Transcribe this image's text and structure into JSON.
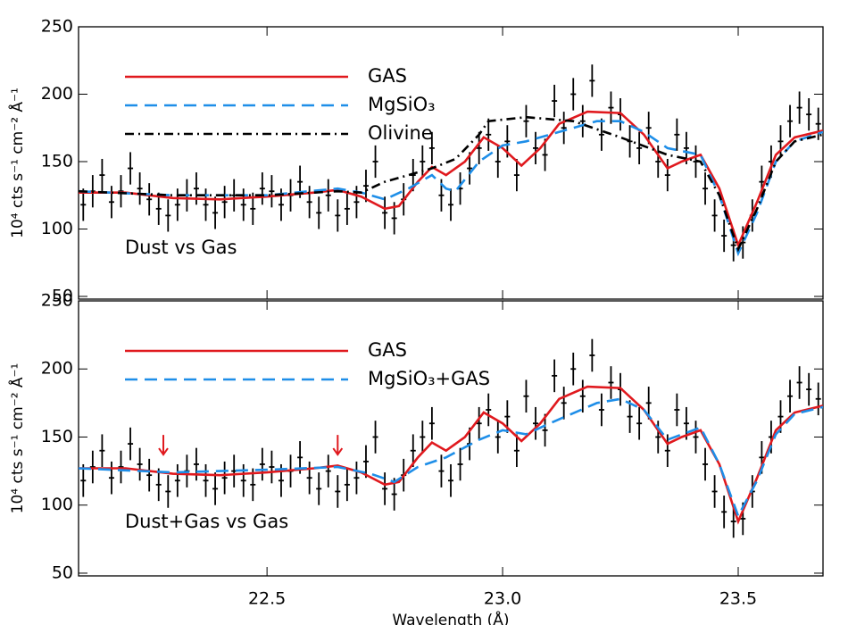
{
  "chart_data": [
    {
      "type": "line",
      "annotation": "Dust vs Gas",
      "ylabel": "10⁴ cts s⁻¹ cm⁻² Å⁻¹",
      "xlim": [
        22.1,
        23.68
      ],
      "ylim": [
        48,
        250
      ],
      "xticks": [
        22.5,
        {
          "value": 23,
          "label": "23.0"
        },
        23.5
      ],
      "show_xtick_labels": false,
      "yticks": [
        50,
        100,
        150,
        200,
        250
      ],
      "points": {
        "x": [
          22.11,
          22.13,
          22.15,
          22.17,
          22.19,
          22.21,
          22.23,
          22.25,
          22.27,
          22.29,
          22.31,
          22.33,
          22.35,
          22.37,
          22.39,
          22.41,
          22.43,
          22.45,
          22.47,
          22.49,
          22.51,
          22.53,
          22.55,
          22.57,
          22.59,
          22.61,
          22.63,
          22.65,
          22.67,
          22.69,
          22.71,
          22.73,
          22.75,
          22.77,
          22.79,
          22.81,
          22.83,
          22.85,
          22.87,
          22.89,
          22.91,
          22.93,
          22.95,
          22.97,
          22.99,
          23.01,
          23.03,
          23.05,
          23.07,
          23.09,
          23.11,
          23.13,
          23.15,
          23.17,
          23.19,
          23.21,
          23.23,
          23.25,
          23.27,
          23.29,
          23.31,
          23.33,
          23.35,
          23.37,
          23.39,
          23.41,
          23.43,
          23.45,
          23.47,
          23.49,
          23.51,
          23.53,
          23.55,
          23.57,
          23.59,
          23.61,
          23.63,
          23.65,
          23.67
        ],
        "y": [
          118,
          128,
          140,
          120,
          128,
          145,
          130,
          122,
          115,
          110,
          118,
          125,
          130,
          118,
          112,
          120,
          125,
          118,
          115,
          130,
          128,
          118,
          125,
          135,
          120,
          112,
          125,
          110,
          115,
          120,
          132,
          150,
          112,
          108,
          122,
          140,
          150,
          160,
          125,
          118,
          130,
          145,
          160,
          170,
          150,
          165,
          140,
          180,
          160,
          155,
          195,
          175,
          200,
          180,
          210,
          170,
          190,
          185,
          165,
          160,
          175,
          150,
          140,
          170,
          160,
          150,
          130,
          110,
          95,
          88,
          90,
          110,
          135,
          150,
          165,
          180,
          190,
          185,
          178
        ],
        "yerr": 12
      },
      "series": [
        {
          "name": "GAS",
          "color": "#e0191e",
          "dash": "solid",
          "x": [
            22.1,
            22.2,
            22.3,
            22.4,
            22.5,
            22.6,
            22.65,
            22.7,
            22.75,
            22.78,
            22.82,
            22.85,
            22.88,
            22.92,
            22.96,
            23.0,
            23.04,
            23.08,
            23.12,
            23.18,
            23.25,
            23.3,
            23.35,
            23.38,
            23.42,
            23.46,
            23.5,
            23.54,
            23.58,
            23.62,
            23.68
          ],
          "values": [
            127,
            127,
            123,
            122,
            124,
            127,
            129,
            124,
            115,
            117,
            135,
            146,
            140,
            150,
            168,
            160,
            147,
            160,
            178,
            187,
            186,
            170,
            145,
            150,
            155,
            130,
            88,
            120,
            155,
            168,
            173
          ]
        },
        {
          "name": "MgSiO₃",
          "color": "#1e8ee8",
          "dash": "dashed",
          "x": [
            22.1,
            22.3,
            22.5,
            22.65,
            22.7,
            22.75,
            22.8,
            22.85,
            22.88,
            22.9,
            22.95,
            23.0,
            23.05,
            23.12,
            23.2,
            23.25,
            23.3,
            23.35,
            23.42,
            23.46,
            23.5,
            23.54,
            23.58,
            23.62,
            23.68
          ],
          "values": [
            128,
            125,
            125,
            130,
            127,
            122,
            130,
            140,
            130,
            128,
            150,
            162,
            165,
            172,
            180,
            180,
            172,
            160,
            155,
            125,
            82,
            112,
            150,
            165,
            172
          ]
        },
        {
          "name": "Olivine",
          "color": "#000000",
          "dash": "dashdot",
          "x": [
            22.1,
            22.3,
            22.5,
            22.65,
            22.7,
            22.75,
            22.8,
            22.85,
            22.9,
            22.95,
            22.97,
            23.05,
            23.15,
            23.25,
            23.35,
            23.42,
            23.46,
            23.5,
            23.54,
            23.58,
            23.62,
            23.68
          ],
          "values": [
            128,
            125,
            125,
            128,
            127,
            135,
            140,
            145,
            152,
            170,
            180,
            183,
            180,
            168,
            155,
            150,
            125,
            85,
            115,
            150,
            165,
            170
          ]
        }
      ]
    },
    {
      "type": "line",
      "annotation": "Dust+Gas vs Gas",
      "ylabel": "10⁴ cts s⁻¹ cm⁻² Å⁻¹",
      "xlabel": "Wavelength (Å)",
      "xlim": [
        22.1,
        23.68
      ],
      "ylim": [
        48,
        250
      ],
      "xticks": [
        22.5,
        {
          "value": 23,
          "label": "23.0"
        },
        23.5
      ],
      "show_xtick_labels": true,
      "yticks": [
        50,
        100,
        150,
        200,
        250
      ],
      "arrows": {
        "color": "#e0191e",
        "x": [
          22.28,
          22.65
        ],
        "y": [
          145,
          145
        ]
      },
      "points": {
        "x": [
          22.11,
          22.13,
          22.15,
          22.17,
          22.19,
          22.21,
          22.23,
          22.25,
          22.27,
          22.29,
          22.31,
          22.33,
          22.35,
          22.37,
          22.39,
          22.41,
          22.43,
          22.45,
          22.47,
          22.49,
          22.51,
          22.53,
          22.55,
          22.57,
          22.59,
          22.61,
          22.63,
          22.65,
          22.67,
          22.69,
          22.71,
          22.73,
          22.75,
          22.77,
          22.79,
          22.81,
          22.83,
          22.85,
          22.87,
          22.89,
          22.91,
          22.93,
          22.95,
          22.97,
          22.99,
          23.01,
          23.03,
          23.05,
          23.07,
          23.09,
          23.11,
          23.13,
          23.15,
          23.17,
          23.19,
          23.21,
          23.23,
          23.25,
          23.27,
          23.29,
          23.31,
          23.33,
          23.35,
          23.37,
          23.39,
          23.41,
          23.43,
          23.45,
          23.47,
          23.49,
          23.51,
          23.53,
          23.55,
          23.57,
          23.59,
          23.61,
          23.63,
          23.65,
          23.67
        ],
        "y": [
          118,
          128,
          140,
          120,
          128,
          145,
          130,
          122,
          115,
          110,
          118,
          125,
          130,
          118,
          112,
          120,
          125,
          118,
          115,
          130,
          128,
          118,
          125,
          135,
          120,
          112,
          125,
          110,
          115,
          120,
          132,
          150,
          112,
          108,
          122,
          140,
          150,
          160,
          125,
          118,
          130,
          145,
          160,
          170,
          150,
          165,
          140,
          180,
          160,
          155,
          195,
          175,
          200,
          180,
          210,
          170,
          190,
          185,
          165,
          160,
          175,
          150,
          140,
          170,
          160,
          150,
          130,
          110,
          95,
          88,
          90,
          110,
          135,
          150,
          165,
          180,
          190,
          185,
          178
        ],
        "yerr": 12
      },
      "series": [
        {
          "name": "GAS",
          "color": "#e0191e",
          "dash": "solid",
          "x": [
            22.1,
            22.2,
            22.3,
            22.4,
            22.5,
            22.6,
            22.65,
            22.7,
            22.75,
            22.78,
            22.82,
            22.85,
            22.88,
            22.92,
            22.96,
            23.0,
            23.04,
            23.08,
            23.12,
            23.18,
            23.25,
            23.3,
            23.35,
            23.38,
            23.42,
            23.46,
            23.5,
            23.54,
            23.58,
            23.62,
            23.68
          ],
          "values": [
            127,
            127,
            123,
            122,
            124,
            127,
            129,
            124,
            115,
            117,
            135,
            146,
            140,
            150,
            168,
            160,
            147,
            160,
            178,
            187,
            186,
            170,
            145,
            150,
            155,
            130,
            88,
            120,
            155,
            168,
            173
          ]
        },
        {
          "name": "MgSiO₃+GAS",
          "color": "#1e8ee8",
          "dash": "dashed",
          "x": [
            22.1,
            22.3,
            22.5,
            22.65,
            22.72,
            22.77,
            22.82,
            22.88,
            22.95,
            23.0,
            23.05,
            23.1,
            23.2,
            23.25,
            23.3,
            23.35,
            23.42,
            23.46,
            23.5,
            23.54,
            23.58,
            23.62,
            23.68
          ],
          "values": [
            127,
            124,
            126,
            128,
            123,
            117,
            128,
            135,
            148,
            155,
            152,
            160,
            175,
            178,
            170,
            148,
            157,
            130,
            92,
            118,
            152,
            167,
            172
          ]
        }
      ]
    }
  ]
}
